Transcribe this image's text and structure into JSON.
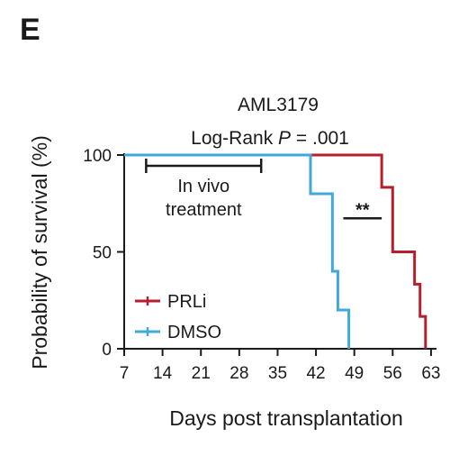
{
  "panel_label": "E",
  "colors": {
    "PRLi": "#b51f2e",
    "DMSO": "#3fa9d8",
    "axis": "#1a1a1a"
  },
  "chart_data": {
    "type": "line",
    "step": true,
    "title_line1": "AML3179",
    "title_prefix": "Log-Rank ",
    "title_p": "P",
    "title_suffix": " = .001",
    "xlabel": "Days post transplantation",
    "ylabel": "Probability of survival (%)",
    "xlim": [
      7,
      64
    ],
    "ylim": [
      0,
      100
    ],
    "xticks": [
      7,
      14,
      21,
      28,
      35,
      42,
      49,
      56,
      63
    ],
    "yticks": [
      0,
      50,
      100
    ],
    "series": [
      {
        "name": "PRLi",
        "x": [
          7,
          54,
          56,
          60,
          61,
          62
        ],
        "y": [
          100,
          83.3,
          50,
          33.3,
          16.7,
          0
        ],
        "end_x": 62
      },
      {
        "name": "DMSO",
        "x": [
          7,
          41,
          45,
          46,
          48
        ],
        "y": [
          100,
          80,
          40,
          20,
          0
        ],
        "end_x": 48
      }
    ],
    "treatment": {
      "label_line1": "In vivo",
      "label_line2": "treatment",
      "x_start": 11,
      "x_end": 32,
      "y": 100
    },
    "significance": {
      "label": "**",
      "x_start": 47,
      "x_end": 54,
      "y": 65
    },
    "legend": {
      "position": "bottom-left",
      "entries": [
        "PRLi",
        "DMSO"
      ]
    }
  }
}
